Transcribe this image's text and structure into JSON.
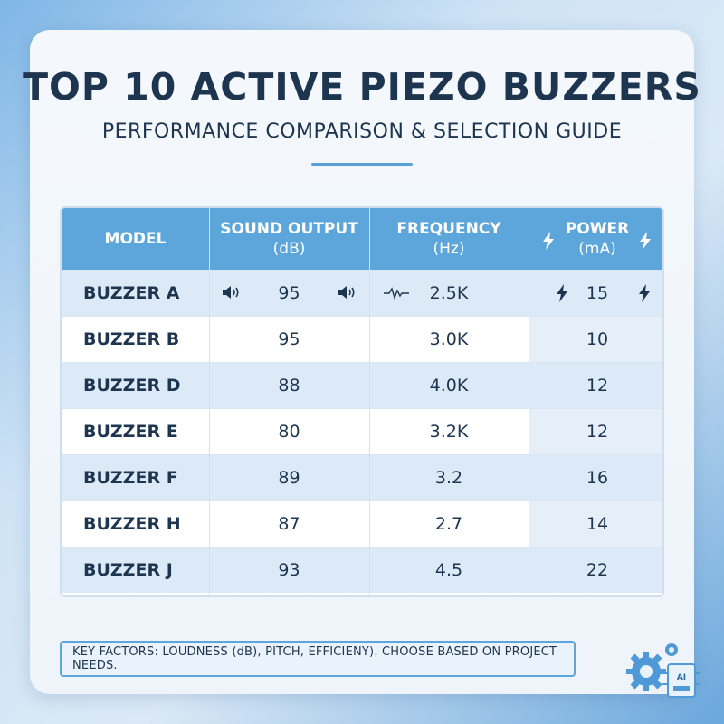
{
  "title": "TOP 10 ACTIVE PIEZO BUZZERS",
  "subtitle": "PERFORMANCE COMPARISON & SELECTION GUIDE",
  "table": {
    "headers": {
      "model": "MODEL",
      "sound_line1": "SOUND OUTPUT",
      "sound_line2": "(dB)",
      "freq_line1": "FREQUENCY",
      "freq_line2": "(Hz)",
      "power_line1": "POWER",
      "power_line2": "(mA)"
    },
    "rows": [
      {
        "model": "BUZZER A",
        "sound": "95",
        "frequency": "2.5K",
        "power": "15"
      },
      {
        "model": "BUZZER B",
        "sound": "95",
        "frequency": "3.0K",
        "power": "10"
      },
      {
        "model": "BUZZER D",
        "sound": "88",
        "frequency": "4.0K",
        "power": "12"
      },
      {
        "model": "BUZZER E",
        "sound": "80",
        "frequency": "3.2K",
        "power": "12"
      },
      {
        "model": "BUZZER F",
        "sound": "89",
        "frequency": "3.2",
        "power": "16"
      },
      {
        "model": "BUZZER H",
        "sound": "87",
        "frequency": "2.7",
        "power": "14"
      },
      {
        "model": "BUZZER J",
        "sound": "93",
        "frequency": "4.5",
        "power": "22"
      }
    ]
  },
  "footer": "KEY FACTORS: LOUDNESS (dB), PITCH, EFFICIENY). CHOOSE BASED ON PROJECT NEEDS.",
  "badge_text": "AI",
  "colors": {
    "accent": "#5ca6dc",
    "text": "#1e3550",
    "row_alt": "#dce9f6"
  },
  "icons": [
    "speaker-icon",
    "waveform-icon",
    "lightning-icon",
    "gear-icon",
    "circuit-chip-icon"
  ]
}
